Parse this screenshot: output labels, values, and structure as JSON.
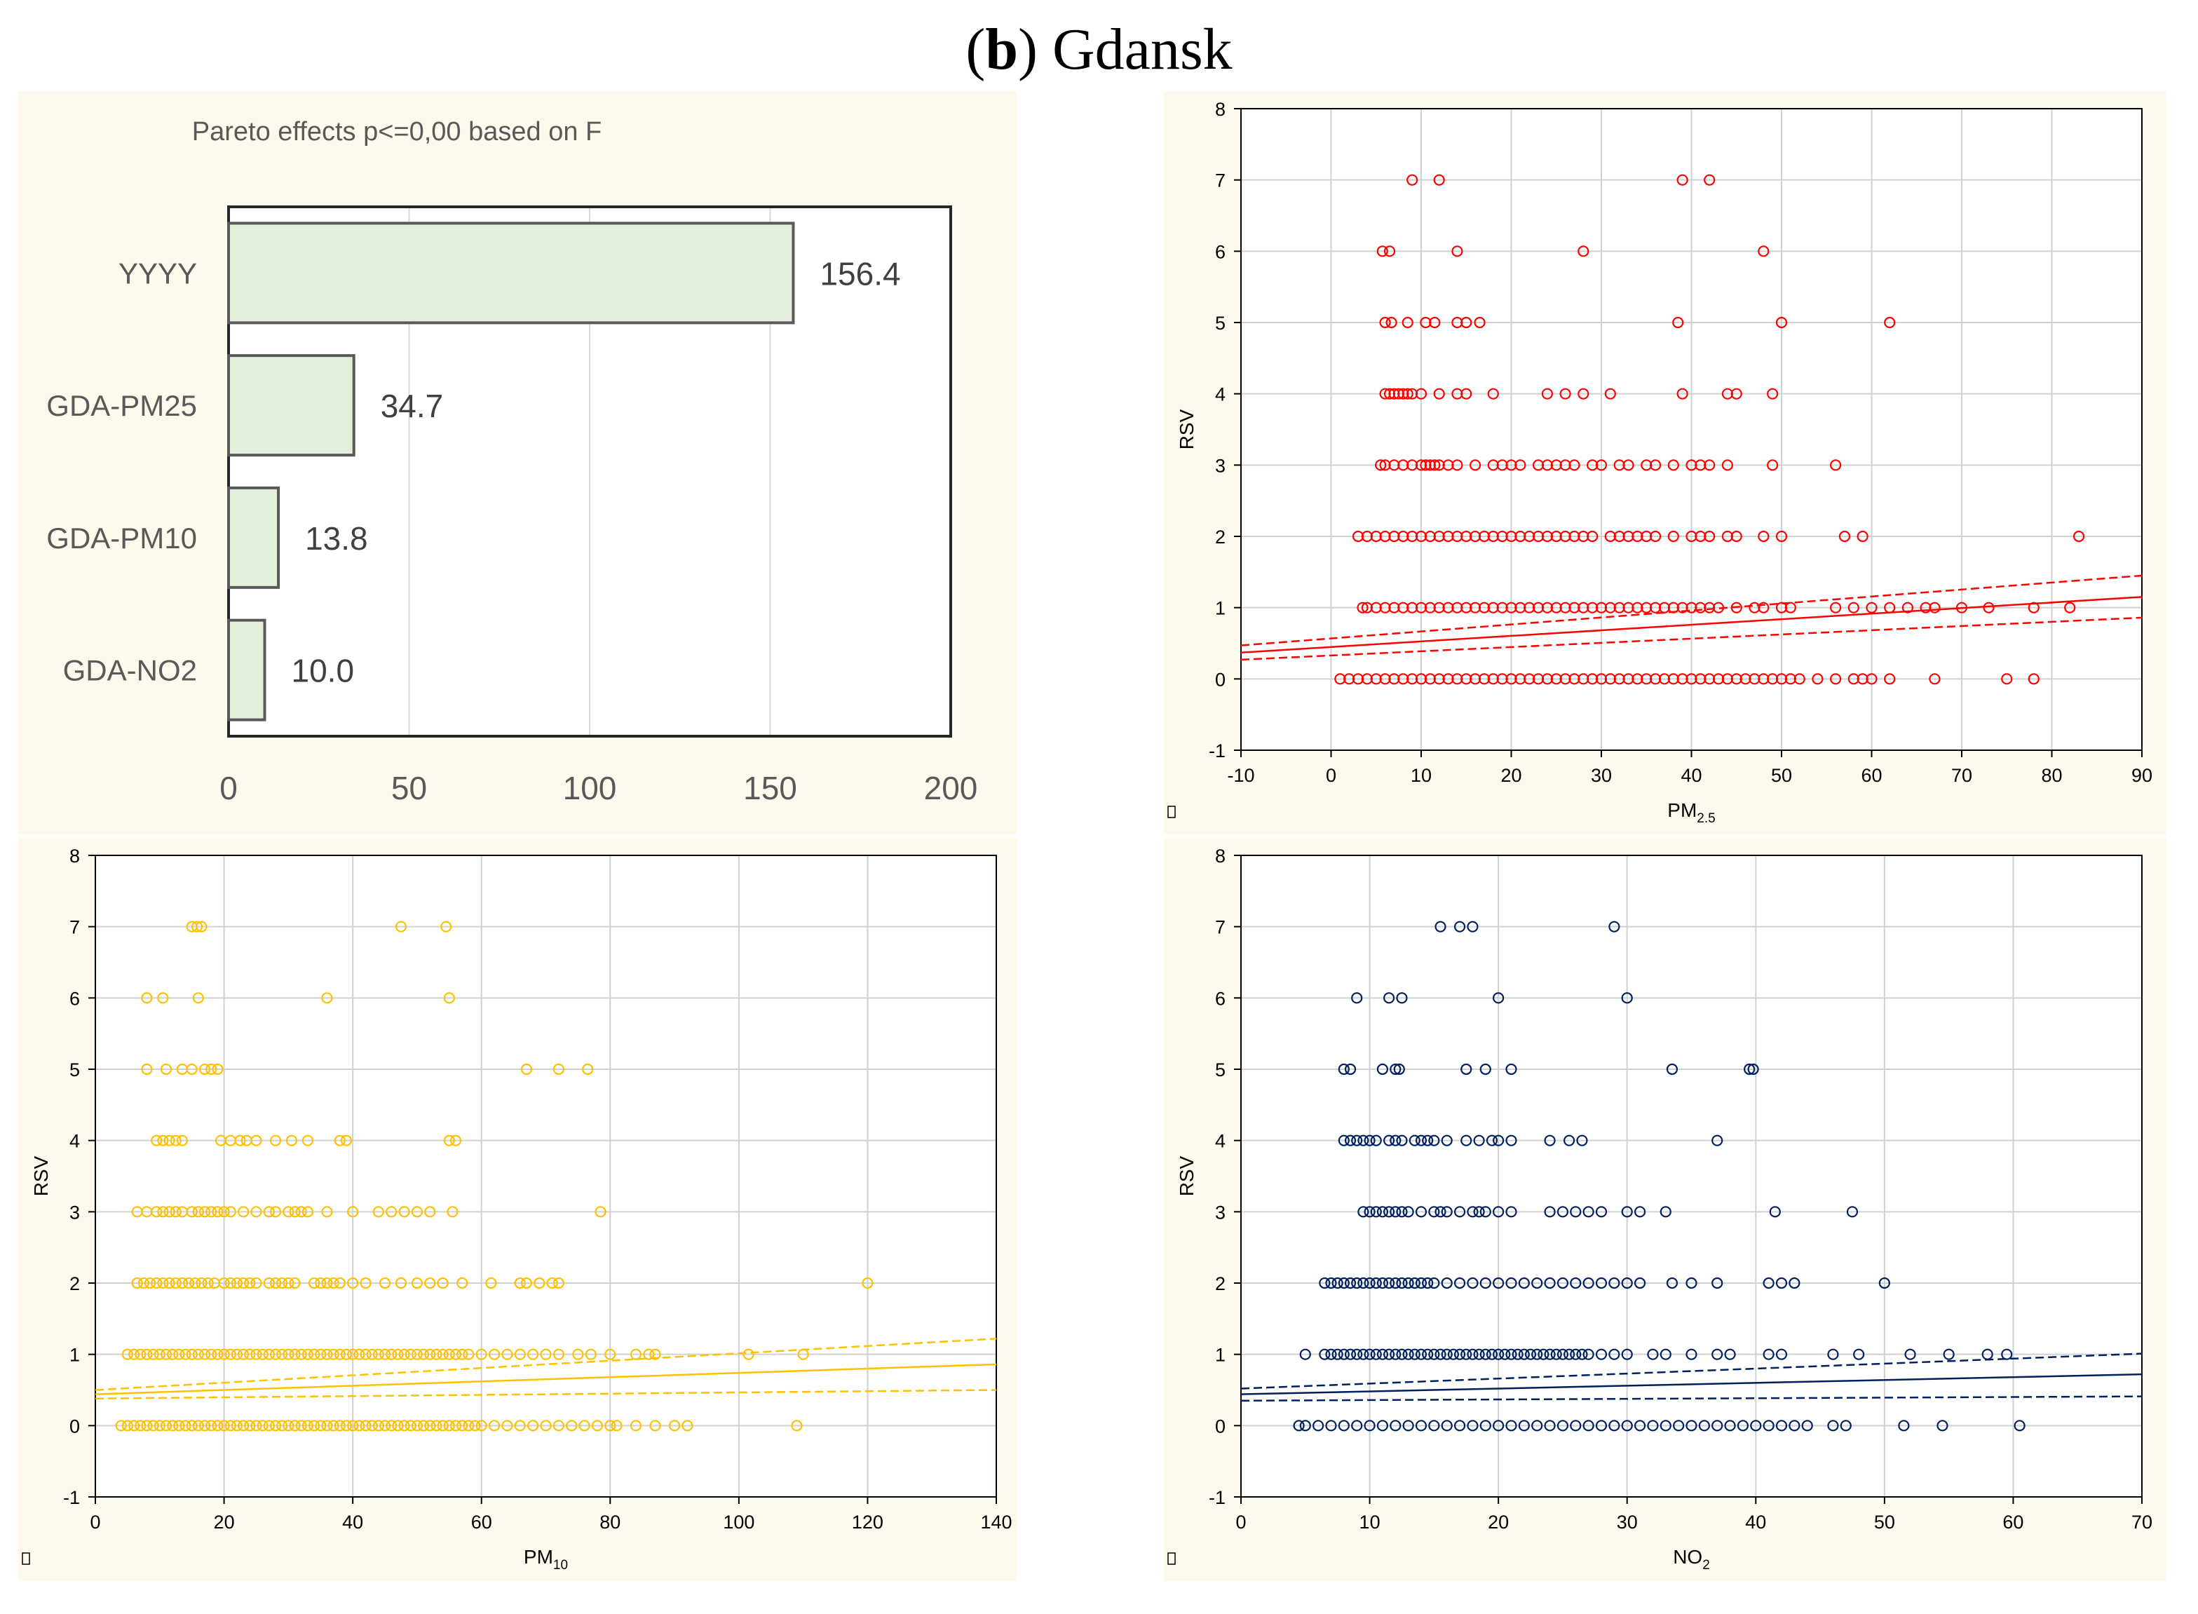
{
  "figure": {
    "label": "b",
    "title": "Gdansk"
  },
  "chart_data": [
    {
      "type": "bar",
      "orientation": "horizontal",
      "title": "Pareto effects p<=0,00 based on F",
      "categories": [
        "YYYY",
        "GDA-PM25",
        "GDA-PM10",
        "GDA-NO2"
      ],
      "values": [
        156.4,
        34.7,
        13.8,
        10.0
      ],
      "value_labels": [
        "156.4",
        "34.7",
        "13.8",
        "10.0"
      ],
      "xlim": [
        0,
        200
      ],
      "xticks": [
        0,
        50,
        100,
        150,
        200
      ],
      "colors": {
        "bar_fill": "#e2efda",
        "bar_stroke": "#595959",
        "background": "#fdf9ec"
      }
    },
    {
      "type": "scatter",
      "xlabel": "PM",
      "xlabel_sub": "2.5",
      "ylabel": "RSV",
      "xlim": [
        -10,
        90
      ],
      "ylim": [
        -1,
        8
      ],
      "xticks": [
        -10,
        0,
        10,
        20,
        30,
        40,
        50,
        60,
        70,
        80,
        90
      ],
      "yticks": [
        -1,
        0,
        1,
        2,
        3,
        4,
        5,
        6,
        7,
        8
      ],
      "color": "#ff0000",
      "fit_line": {
        "x": [
          -10,
          90
        ],
        "y": [
          0.37,
          1.15
        ]
      },
      "ci_upper": {
        "x": [
          -10,
          90
        ],
        "y": [
          0.47,
          1.45
        ]
      },
      "ci_lower": {
        "x": [
          -10,
          90
        ],
        "y": [
          0.27,
          0.86
        ]
      },
      "points": [
        {
          "y": 7,
          "x": [
            9,
            12,
            39,
            42
          ]
        },
        {
          "y": 6,
          "x": [
            5.7,
            6.5,
            14,
            28,
            48
          ]
        },
        {
          "y": 5,
          "x": [
            6,
            6.7,
            8.5,
            10.5,
            11.5,
            14,
            15,
            16.5,
            38.5,
            50,
            62
          ]
        },
        {
          "y": 4,
          "x": [
            6,
            6.5,
            7,
            7.5,
            8,
            8.5,
            9,
            10,
            12,
            14,
            15,
            18,
            24,
            26,
            28,
            31,
            39,
            44,
            45,
            49
          ]
        },
        {
          "y": 3,
          "x": [
            5.5,
            6,
            7,
            8,
            9,
            10,
            10.5,
            11,
            11.5,
            12,
            13,
            14,
            16,
            18,
            19,
            20,
            21,
            23,
            24,
            25,
            26,
            27,
            29,
            30,
            32,
            33,
            35,
            36,
            38,
            40,
            41,
            42,
            44,
            49,
            56
          ]
        },
        {
          "y": 2,
          "x": [
            3,
            4,
            5,
            6,
            7,
            8,
            9,
            10,
            11,
            12,
            13,
            14,
            15,
            16,
            17,
            18,
            19,
            20,
            21,
            22,
            23,
            24,
            25,
            26,
            27,
            28,
            29,
            31,
            32,
            33,
            34,
            35,
            36,
            38,
            40,
            41,
            42,
            44,
            45,
            48,
            50,
            57,
            59,
            83
          ]
        },
        {
          "y": 1,
          "x": [
            3.5,
            4,
            5,
            6,
            7,
            8,
            9,
            10,
            11,
            12,
            13,
            14,
            15,
            16,
            17,
            18,
            19,
            20,
            21,
            22,
            23,
            24,
            25,
            26,
            27,
            28,
            29,
            30,
            31,
            32,
            33,
            34,
            35,
            36,
            37,
            38,
            39,
            40,
            41,
            42,
            43,
            45,
            47,
            48,
            50,
            51,
            56,
            58,
            60,
            62,
            64,
            66,
            67,
            70,
            73,
            78,
            82
          ]
        },
        {
          "y": 0,
          "x": [
            1,
            2,
            3,
            4,
            5,
            6,
            7,
            8,
            9,
            10,
            11,
            12,
            13,
            14,
            15,
            16,
            17,
            18,
            19,
            20,
            21,
            22,
            23,
            24,
            25,
            26,
            27,
            28,
            29,
            30,
            31,
            32,
            33,
            34,
            35,
            36,
            37,
            38,
            39,
            40,
            41,
            42,
            43,
            44,
            45,
            46,
            47,
            48,
            49,
            50,
            51,
            52,
            54,
            56,
            58,
            59,
            60,
            62,
            67,
            75,
            78
          ]
        }
      ]
    },
    {
      "type": "scatter",
      "xlabel": "PM",
      "xlabel_sub": "10",
      "ylabel": "RSV",
      "xlim": [
        0,
        140
      ],
      "ylim": [
        -1,
        8
      ],
      "xticks": [
        0,
        20,
        40,
        60,
        80,
        100,
        120,
        140
      ],
      "yticks": [
        -1,
        0,
        1,
        2,
        3,
        4,
        5,
        6,
        7,
        8
      ],
      "color": "#ffc000",
      "fit_line": {
        "x": [
          0,
          140
        ],
        "y": [
          0.44,
          0.86
        ]
      },
      "ci_upper": {
        "x": [
          0,
          140
        ],
        "y": [
          0.5,
          1.22
        ]
      },
      "ci_lower": {
        "x": [
          0,
          140
        ],
        "y": [
          0.38,
          0.5
        ]
      },
      "points": [
        {
          "y": 7,
          "x": [
            15,
            15.8,
            16.5,
            47.5,
            54.5
          ]
        },
        {
          "y": 6,
          "x": [
            8,
            10.5,
            16,
            36,
            55
          ]
        },
        {
          "y": 5,
          "x": [
            8,
            11,
            13.5,
            15,
            17,
            18,
            19,
            67,
            72,
            76.5
          ]
        },
        {
          "y": 4,
          "x": [
            9.5,
            10.5,
            11.5,
            12.5,
            13.5,
            19.5,
            21,
            22.5,
            23.5,
            25,
            28,
            30.5,
            33,
            38,
            39,
            55,
            56
          ]
        },
        {
          "y": 3,
          "x": [
            6.5,
            8,
            9.5,
            10.5,
            11.5,
            12.5,
            13.5,
            15,
            16,
            17,
            18,
            19,
            20,
            21,
            23,
            25,
            27,
            28,
            30,
            31,
            32,
            33,
            36,
            40,
            44,
            46,
            48,
            50,
            52,
            55.5,
            78.5
          ]
        },
        {
          "y": 2,
          "x": [
            6.5,
            7.5,
            8.5,
            9.5,
            10.5,
            11.5,
            12.5,
            13.5,
            14.5,
            15.5,
            16.5,
            17.5,
            18.5,
            20,
            21,
            22,
            23,
            24,
            25,
            27,
            28,
            29,
            30,
            31,
            34,
            35,
            36,
            37,
            38,
            40,
            42,
            45,
            47.5,
            50,
            52,
            54,
            57,
            61.5,
            66,
            67,
            69,
            71,
            72,
            120
          ]
        },
        {
          "y": 1,
          "x": [
            5,
            6,
            7,
            8,
            9,
            10,
            11,
            12,
            13,
            14,
            15,
            16,
            17,
            18,
            19,
            20,
            21,
            22,
            23,
            24,
            25,
            26,
            27,
            28,
            29,
            30,
            31,
            32,
            33,
            34,
            35,
            36,
            37,
            38,
            39,
            40,
            41,
            42,
            43,
            44,
            45,
            46,
            47,
            48,
            49,
            50,
            51,
            52,
            53,
            54,
            55,
            56,
            57,
            58,
            60,
            62,
            64,
            66,
            68,
            70,
            72,
            75,
            77,
            80,
            84,
            86,
            87,
            101.5,
            110
          ]
        },
        {
          "y": 0,
          "x": [
            4,
            5,
            6,
            7,
            8,
            9,
            10,
            11,
            12,
            13,
            14,
            15,
            16,
            17,
            18,
            19,
            20,
            21,
            22,
            23,
            24,
            25,
            26,
            27,
            28,
            29,
            30,
            31,
            32,
            33,
            34,
            35,
            36,
            37,
            38,
            39,
            40,
            41,
            42,
            43,
            44,
            45,
            46,
            47,
            48,
            49,
            50,
            51,
            52,
            53,
            54,
            55,
            56,
            57,
            58,
            59,
            60,
            62,
            64,
            66,
            68,
            70,
            72,
            74,
            76,
            78,
            80,
            81,
            84,
            87,
            90,
            92,
            109
          ]
        }
      ]
    },
    {
      "type": "scatter",
      "xlabel": "NO",
      "xlabel_sub": "2",
      "ylabel": "RSV",
      "xlim": [
        0,
        70
      ],
      "ylim": [
        -1,
        8
      ],
      "xticks": [
        0,
        10,
        20,
        30,
        40,
        50,
        60,
        70
      ],
      "yticks": [
        -1,
        0,
        1,
        2,
        3,
        4,
        5,
        6,
        7,
        8
      ],
      "color": "#002060",
      "fit_line": {
        "x": [
          0,
          70
        ],
        "y": [
          0.44,
          0.72
        ]
      },
      "ci_upper": {
        "x": [
          0,
          70
        ],
        "y": [
          0.52,
          1.01
        ]
      },
      "ci_lower": {
        "x": [
          0,
          70
        ],
        "y": [
          0.35,
          0.41
        ]
      },
      "points": [
        {
          "y": 7,
          "x": [
            15.5,
            17,
            18,
            29
          ]
        },
        {
          "y": 6,
          "x": [
            9,
            11.5,
            12.5,
            20,
            30
          ]
        },
        {
          "y": 5,
          "x": [
            8,
            8.5,
            11,
            12,
            12.3,
            17.5,
            19,
            21,
            33.5,
            39.5,
            39.8
          ]
        },
        {
          "y": 4,
          "x": [
            8,
            8.5,
            9,
            9.5,
            10,
            10.5,
            11.5,
            12,
            12.5,
            13.5,
            14,
            14.5,
            15,
            16,
            17.5,
            18.5,
            19.5,
            20,
            21,
            24,
            25.5,
            26.5,
            37
          ]
        },
        {
          "y": 3,
          "x": [
            9.5,
            10,
            10.5,
            11,
            11.5,
            12,
            12.5,
            13,
            14,
            15,
            15.5,
            16,
            17,
            18,
            18.5,
            19,
            20,
            21,
            24,
            25,
            26,
            27,
            28,
            30,
            31,
            33,
            41.5,
            47.5
          ]
        },
        {
          "y": 2,
          "x": [
            6.5,
            7,
            7.5,
            8,
            8.5,
            9,
            9.5,
            10,
            10.5,
            11,
            11.5,
            12,
            12.5,
            13,
            13.5,
            14,
            14.5,
            15,
            16,
            17,
            18,
            19,
            20,
            21,
            22,
            23,
            24,
            25,
            26,
            27,
            28,
            29,
            30,
            31,
            33.5,
            35,
            37,
            41,
            42,
            43,
            50
          ]
        },
        {
          "y": 1,
          "x": [
            5,
            6.5,
            7,
            7.5,
            8,
            8.5,
            9,
            9.5,
            10,
            10.5,
            11,
            11.5,
            12,
            12.5,
            13,
            13.5,
            14,
            14.5,
            15,
            15.5,
            16,
            16.5,
            17,
            17.5,
            18,
            18.5,
            19,
            19.5,
            20,
            20.5,
            21,
            21.5,
            22,
            22.5,
            23,
            23.5,
            24,
            24.5,
            25,
            25.5,
            26,
            26.5,
            27,
            28,
            29,
            30,
            32,
            33,
            35,
            37,
            38,
            41,
            42,
            46,
            48,
            52,
            55,
            58,
            59.5
          ]
        },
        {
          "y": 0,
          "x": [
            4.5,
            5,
            6,
            7,
            8,
            9,
            10,
            11,
            12,
            13,
            14,
            15,
            16,
            17,
            18,
            19,
            20,
            21,
            22,
            23,
            24,
            25,
            26,
            27,
            28,
            29,
            30,
            31,
            32,
            33,
            34,
            35,
            36,
            37,
            38,
            39,
            40,
            41,
            42,
            43,
            44,
            46,
            47,
            51.5,
            54.5,
            60.5
          ]
        }
      ]
    }
  ]
}
